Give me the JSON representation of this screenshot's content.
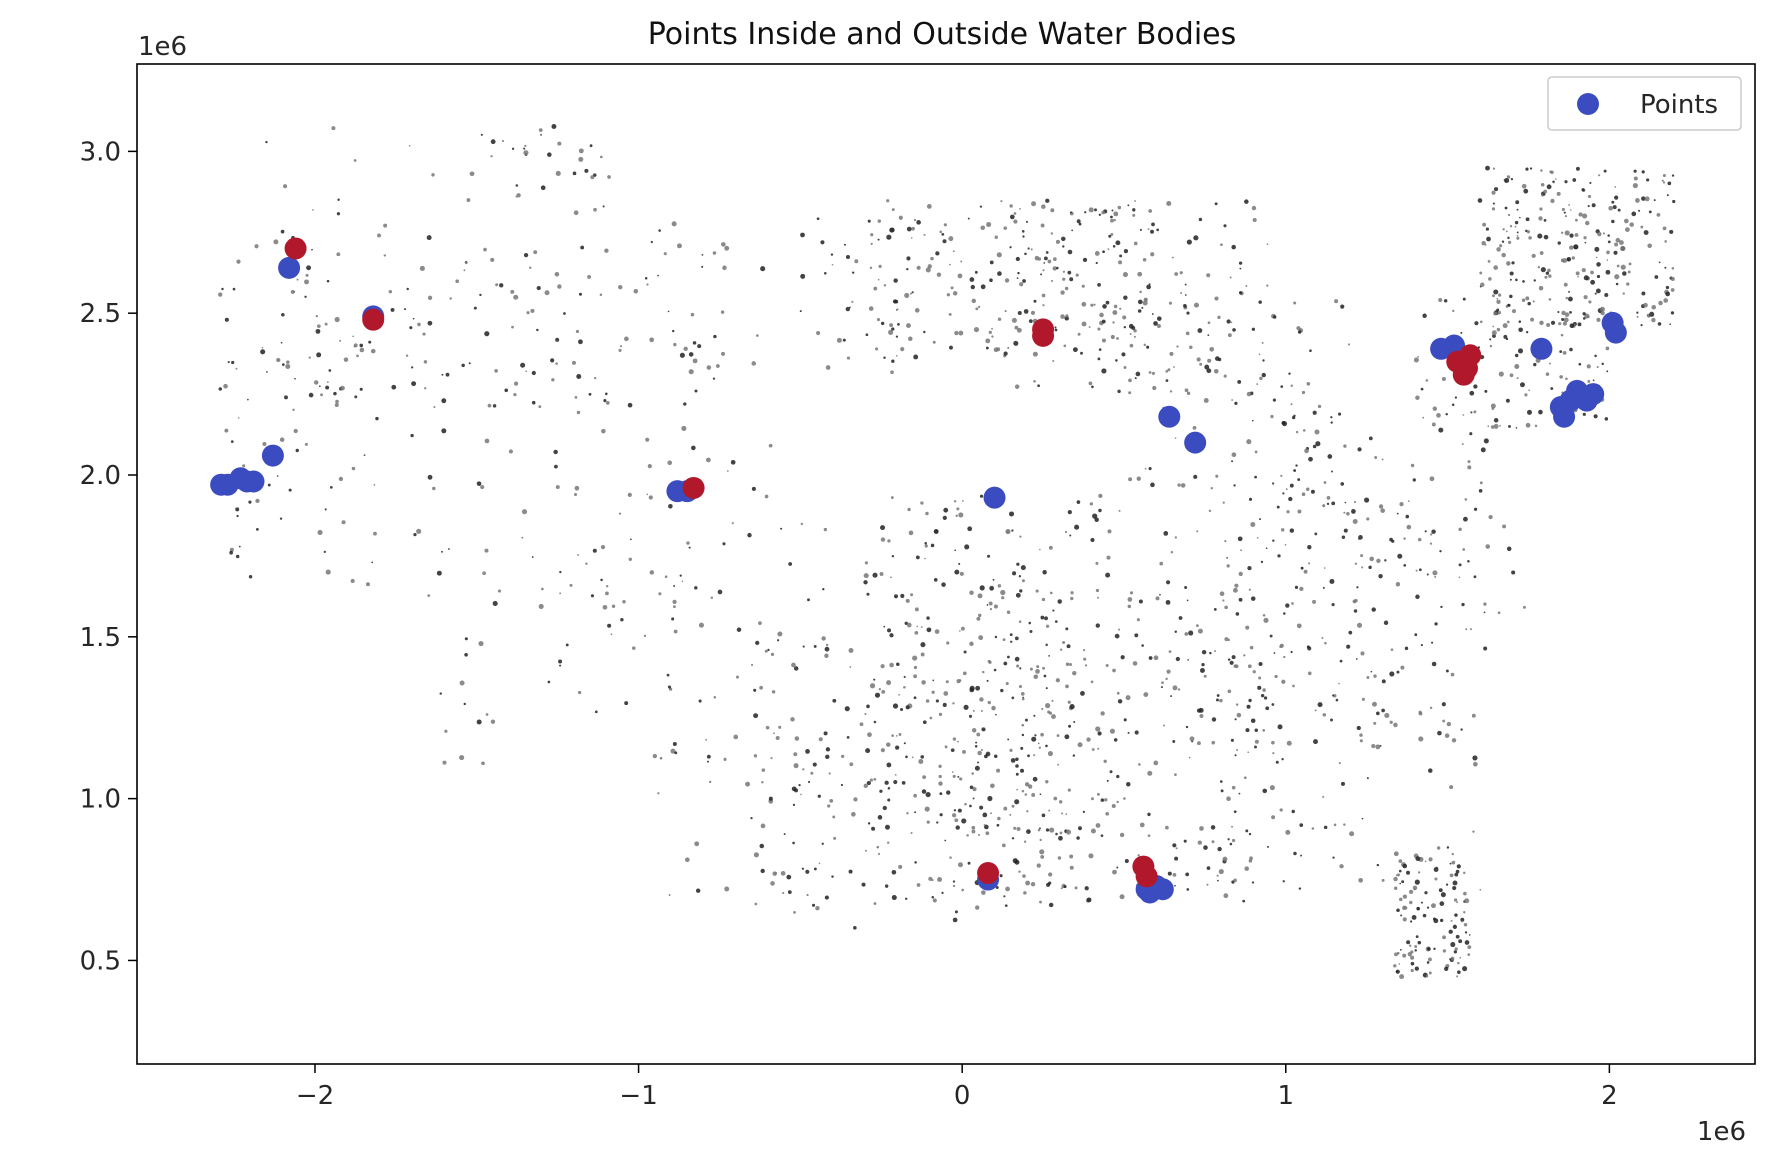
{
  "chart_data": {
    "type": "scatter",
    "title": "Points Inside and Outside Water Bodies",
    "xlabel": "",
    "ylabel": "",
    "x_offset_label": "1e6",
    "y_offset_label": "1e6",
    "xlim": [
      -2.55,
      2.45
    ],
    "ylim": [
      0.18,
      3.27
    ],
    "x_ticks": [
      -2,
      -1,
      0,
      1,
      2
    ],
    "x_tick_labels": [
      "−2",
      "−1",
      "0",
      "1",
      "2"
    ],
    "y_ticks": [
      0.5,
      1.0,
      1.5,
      2.0,
      2.5,
      3.0
    ],
    "y_tick_labels": [
      "0.5",
      "1.0",
      "1.5",
      "2.0",
      "2.5",
      "3.0"
    ],
    "grid": false,
    "legend_position": "top-right",
    "legend_label": "Points",
    "colors": {
      "outside": "#3b4cc0",
      "inside": "#b2182b",
      "water_dark": "#222222",
      "water_light": "#777777"
    },
    "series": [
      {
        "category": "outside",
        "x": [
          -2.29,
          -2.27,
          -2.23,
          -2.21,
          -2.19,
          -2.13,
          -2.08,
          -1.82,
          -0.88,
          -0.85,
          0.08,
          0.1,
          0.57,
          0.58,
          0.6,
          0.62,
          0.64,
          0.72,
          1.48,
          1.52,
          1.79,
          1.85,
          1.86,
          1.88,
          1.9,
          1.93,
          1.95,
          2.01,
          2.02
        ],
        "y": [
          1.97,
          1.97,
          1.99,
          1.98,
          1.98,
          2.06,
          2.64,
          2.49,
          1.95,
          1.95,
          0.75,
          1.93,
          0.72,
          0.71,
          0.73,
          0.72,
          2.18,
          2.1,
          2.39,
          2.4,
          2.39,
          2.21,
          2.18,
          2.23,
          2.26,
          2.23,
          2.25,
          2.47,
          2.44
        ]
      },
      {
        "category": "inside",
        "x": [
          -2.06,
          -1.82,
          -0.83,
          0.08,
          0.25,
          0.25,
          0.56,
          0.57,
          1.53,
          1.55,
          1.56,
          1.57
        ],
        "y": [
          2.7,
          2.48,
          1.96,
          0.77,
          2.45,
          2.43,
          0.79,
          0.76,
          2.35,
          2.31,
          2.33,
          2.37
        ]
      }
    ]
  }
}
